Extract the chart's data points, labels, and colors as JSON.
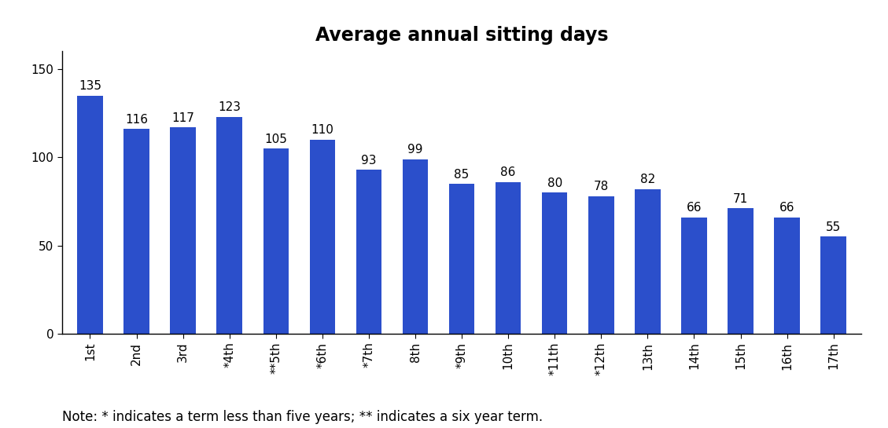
{
  "title": "Average annual sitting days",
  "categories": [
    "1st",
    "2nd",
    "3rd",
    "*4th",
    "**5th",
    "*6th",
    "*7th",
    "8th",
    "*9th",
    "10th",
    "*11th",
    "*12th",
    "13th",
    "14th",
    "15th",
    "16th",
    "17th"
  ],
  "values": [
    135,
    116,
    117,
    123,
    105,
    110,
    93,
    99,
    85,
    86,
    80,
    78,
    82,
    66,
    71,
    66,
    55
  ],
  "bar_color": "#2B4FCB",
  "yticks": [
    0,
    50,
    100,
    150
  ],
  "ylim": [
    0,
    160
  ],
  "note": "Note: * indicates a term less than five years; ** indicates a six year term.",
  "title_fontsize": 17,
  "tick_fontsize": 11,
  "note_fontsize": 12,
  "value_label_fontsize": 11,
  "bar_width": 0.55
}
